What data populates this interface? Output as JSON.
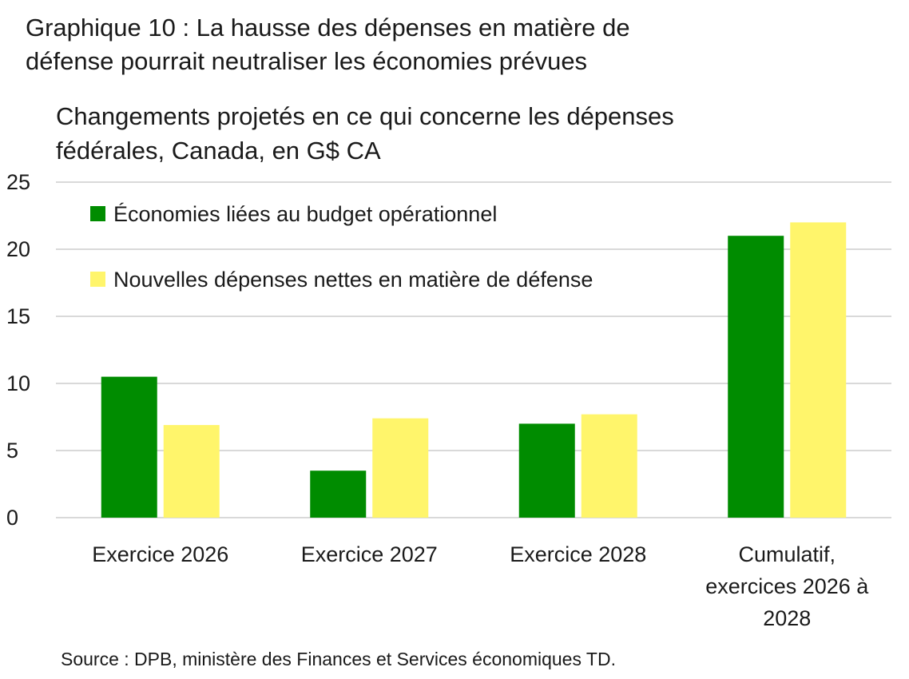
{
  "title_line1": "Graphique 10 : La hausse des dépenses en matière de",
  "title_line2": "défense pourrait neutraliser les économies prévues",
  "source": "Source : DPB, ministère des Finances et Services économiques TD.",
  "colors": {
    "green": "#008C00",
    "yellow": "#FFF56B",
    "grid": "#D9D9D9"
  },
  "chart_data": {
    "type": "bar",
    "title": "Graphique 10 : La hausse des dépenses en matière de défense pourrait neutraliser les économies prévues",
    "subtitle_lines": [
      "Changements projetés en ce qui concerne les dépenses",
      "fédérales, Canada, en G$ CA"
    ],
    "xlabel": "",
    "ylabel": "",
    "ylim": [
      0,
      25
    ],
    "yticks": [
      0,
      5,
      10,
      15,
      20,
      25
    ],
    "grid": true,
    "legend_position": "top-left",
    "categories": [
      [
        "Exercice 2026"
      ],
      [
        "Exercice 2027"
      ],
      [
        "Exercice 2028"
      ],
      [
        "Cumulatif,",
        "exercices 2026 à",
        "2028"
      ]
    ],
    "series": [
      {
        "name": "Économies liées au budget opérationnel",
        "color": "#008C00",
        "values": [
          10.5,
          3.5,
          7.0,
          21.0
        ]
      },
      {
        "name": "Nouvelles dépenses nettes en matière de défense",
        "color": "#FFF56B",
        "values": [
          6.9,
          7.4,
          7.7,
          22.0
        ]
      }
    ]
  }
}
